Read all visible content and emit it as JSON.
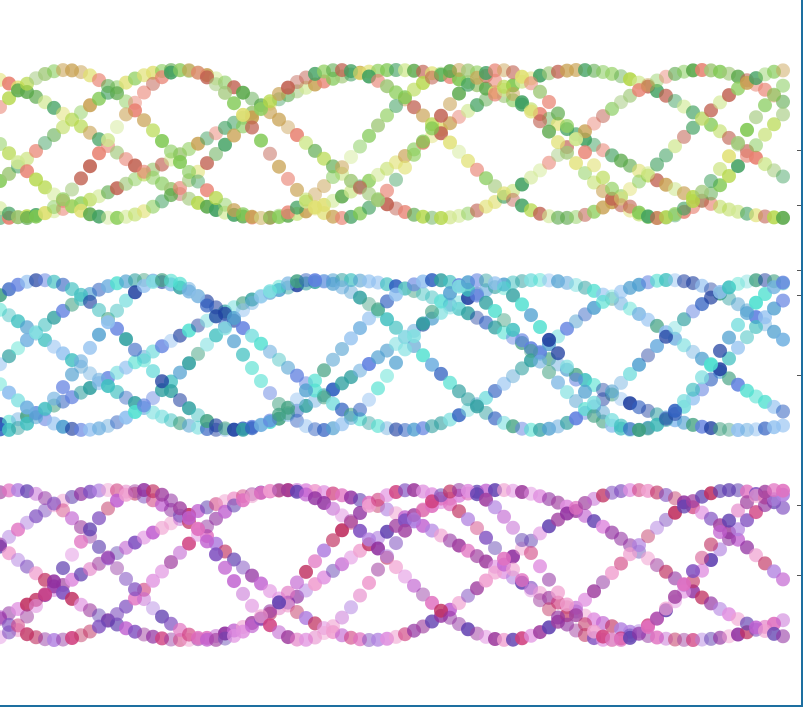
{
  "canvas": {
    "background": "#ffffff",
    "frame_color": "#1d6fa0"
  },
  "bands": [
    {
      "name": "green-yellow-helix",
      "palette": [
        "#7ec850",
        "#b5d84a",
        "#e0e070",
        "#5aa84a",
        "#a0c878",
        "#c8a050",
        "#e88070",
        "#40a060",
        "#d0e890",
        "#90d060",
        "#c06050"
      ],
      "strands": 6
    },
    {
      "name": "cyan-blue-helix",
      "palette": [
        "#40c0c0",
        "#50a0d0",
        "#3060c0",
        "#6080e0",
        "#80e0e0",
        "#40a080",
        "#2040a0",
        "#70b0e0",
        "#50e0d0",
        "#90c0f0",
        "#30a0a0"
      ],
      "strands": 6
    },
    {
      "name": "magenta-purple-helix",
      "palette": [
        "#c060d0",
        "#e070c0",
        "#a040a0",
        "#d04080",
        "#8050c0",
        "#e090e0",
        "#6040b0",
        "#c03060",
        "#b080e0",
        "#f0a0d0",
        "#9030a0"
      ],
      "strands": 6
    }
  ]
}
